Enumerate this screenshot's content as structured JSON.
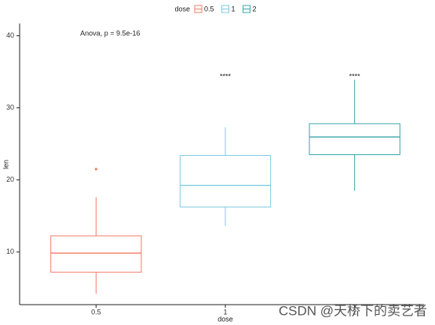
{
  "chart_data": {
    "type": "boxplot",
    "x_label": "dose",
    "y_label": "len",
    "legend_title": "dose",
    "legend_position": "top",
    "categories": [
      "0.5",
      "1",
      "2"
    ],
    "series": [
      {
        "name": "0.5",
        "color": "#F17C67",
        "box": {
          "min": 4.2,
          "q1": 7.2,
          "median": 9.85,
          "q3": 12.25,
          "max": 17.6,
          "outliers": [
            21.5
          ]
        }
      },
      {
        "name": "1",
        "color": "#7FCBE3",
        "box": {
          "min": 13.6,
          "q1": 16.25,
          "median": 19.25,
          "q3": 23.4,
          "max": 27.3,
          "outliers": []
        }
      },
      {
        "name": "2",
        "color": "#3AA5A8",
        "box": {
          "min": 18.5,
          "q1": 23.5,
          "median": 25.95,
          "q3": 27.8,
          "max": 33.9,
          "outliers": []
        }
      }
    ],
    "ylim": [
      2.7,
      41.7
    ],
    "yticks": [
      10,
      20,
      30,
      40
    ],
    "annotations": [
      {
        "text": "Anova, p = 9.5e-16",
        "category": 0,
        "y": 40.3
      },
      {
        "text": "****",
        "category": 1,
        "y": 34.3
      },
      {
        "text": "****",
        "category": 2,
        "y": 34.3
      }
    ],
    "watermark": "CSDN @天桥下的卖艺者"
  }
}
